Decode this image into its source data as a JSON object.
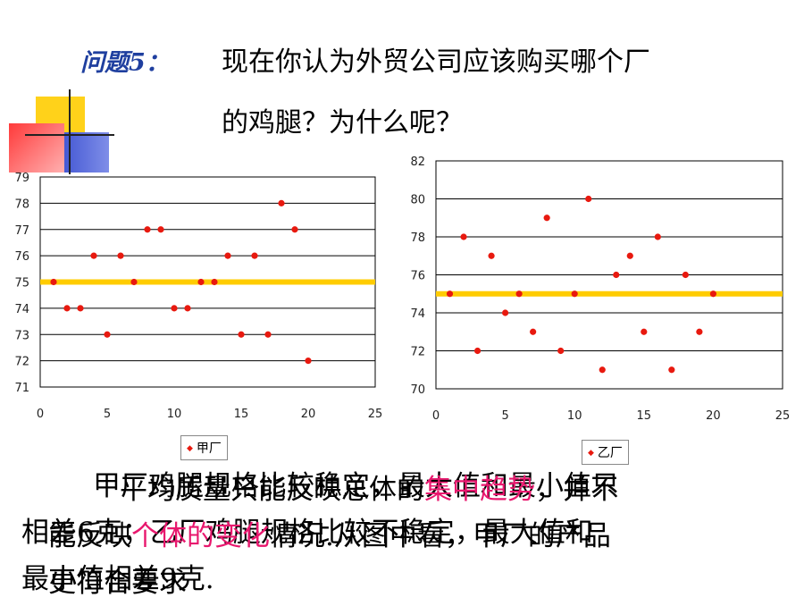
{
  "title": {
    "label": "问题5：",
    "line1": "现在你认为外贸公司应该购买哪个厂",
    "line2": "的鸡腿？为什么呢？"
  },
  "colors": {
    "marker": "#e8190f",
    "mean_line": "#ffcc00",
    "grid": "#000000",
    "highlight": "#e8186e",
    "title_label": "#1f3f9f"
  },
  "chart_data": [
    {
      "type": "scatter",
      "series": [
        {
          "name": "甲厂",
          "x": [
            1,
            2,
            3,
            4,
            5,
            6,
            7,
            8,
            9,
            10,
            11,
            12,
            13,
            14,
            15,
            16,
            17,
            18,
            19,
            20
          ],
          "y": [
            75,
            74,
            74,
            76,
            73,
            76,
            75,
            77,
            77,
            74,
            74,
            75,
            75,
            76,
            73,
            76,
            73,
            78,
            77,
            72
          ]
        }
      ],
      "mean_line": 75,
      "xlim": [
        0,
        25
      ],
      "ylim": [
        71,
        79
      ],
      "xticks": [
        0,
        5,
        10,
        15,
        20,
        25
      ],
      "yticks": [
        71,
        72,
        73,
        74,
        75,
        76,
        77,
        78,
        79
      ],
      "grid": true,
      "legend": "bottom"
    },
    {
      "type": "scatter",
      "series": [
        {
          "name": "乙厂",
          "x": [
            1,
            2,
            3,
            4,
            5,
            6,
            7,
            8,
            9,
            10,
            11,
            12,
            13,
            14,
            15,
            16,
            17,
            18,
            19,
            20
          ],
          "y": [
            75,
            78,
            72,
            77,
            74,
            75,
            73,
            79,
            72,
            75,
            80,
            71,
            76,
            77,
            73,
            78,
            71,
            76,
            73,
            75
          ]
        }
      ],
      "mean_line": 75,
      "xlim": [
        0,
        25
      ],
      "ylim": [
        70,
        82
      ],
      "xticks": [
        0,
        5,
        10,
        15,
        20,
        25
      ],
      "yticks": [
        70,
        72,
        74,
        76,
        78,
        80,
        82
      ],
      "grid": true,
      "legend": "bottom"
    }
  ],
  "paragraph_back": {
    "line1": "甲厂鸡腿规格比较稳定，最大值和最小值只",
    "line2": "相差6克；乙厂鸡腿规格比较不稳定，最大值和",
    "line3": "最小值相差9克."
  },
  "paragraph_front": {
    "line1_a": "平均质量只能反映总体的",
    "line1_hl": "集中趋势",
    "line1_b": "，并不",
    "line2_a": "能反映",
    "line2_hl": "个体的变化",
    "line2_b": "情况.从图中看，甲厂的产品",
    "line3_a": "更符合要求"
  }
}
